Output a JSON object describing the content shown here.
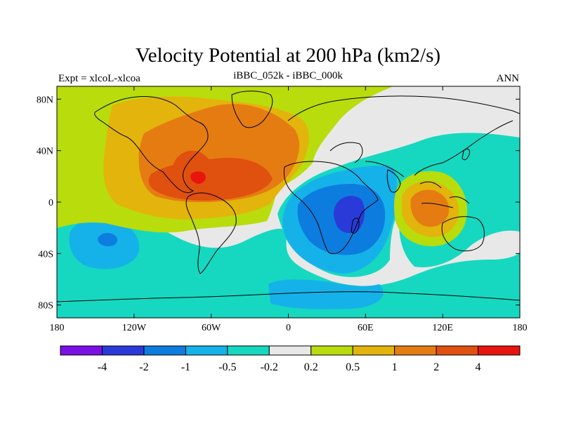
{
  "plot": {
    "title": "Velocity Potential at 200 hPa (km2/s)",
    "left_label": "Expt = xlcoL-xlcoa",
    "center_label": "iBBC_052k - iBBC_000k",
    "right_label": "ANN",
    "lon_ticks": [
      "180",
      "120W",
      "60W",
      "0",
      "60E",
      "120E",
      "180"
    ],
    "lat_ticks": [
      "80N",
      "40N",
      "0",
      "40S",
      "80S"
    ],
    "lon_values": [
      -180,
      -120,
      -60,
      0,
      60,
      120,
      180
    ],
    "lat_values": [
      80,
      40,
      0,
      -40,
      -80
    ],
    "lon_range": [
      -180,
      180
    ],
    "lat_range": [
      -90,
      90
    ]
  },
  "colorbar": {
    "labels": [
      "-4",
      "-2",
      "-1",
      "-0.5",
      "-0.2",
      "0.2",
      "0.5",
      "1",
      "2",
      "4"
    ],
    "colors": [
      "#7a10e6",
      "#2a3ad8",
      "#0c7ddf",
      "#15b2ea",
      "#16d8c0",
      "#e8e8e8",
      "#b9dc0c",
      "#e3b40c",
      "#e57c12",
      "#e0500e",
      "#e8140e"
    ]
  },
  "colors": {
    "background_neutral": "#e8e8e8",
    "coast": "#000000"
  }
}
